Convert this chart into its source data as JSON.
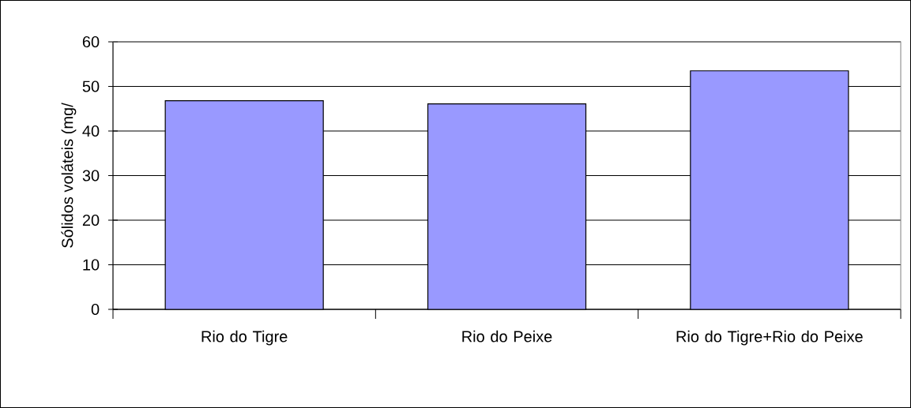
{
  "chart_data": {
    "type": "bar",
    "ylabel": "Sólidos voláteis (mg/",
    "categories": [
      "Rio do Tigre",
      "Rio do Peixe",
      "Rio do Tigre+Rio do Peixe"
    ],
    "values": [
      46.8,
      46.1,
      53.5
    ],
    "color": "#9999ff",
    "ylim": [
      0,
      60
    ],
    "yticks": [
      0,
      10,
      20,
      30,
      40,
      50,
      60
    ],
    "grid": "y"
  }
}
